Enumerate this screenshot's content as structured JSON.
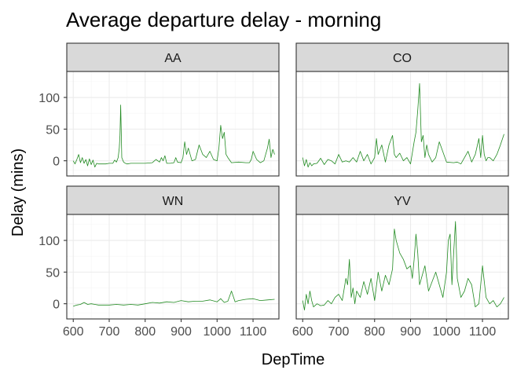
{
  "chart_data": {
    "type": "line",
    "title": "Average departure delay - morning",
    "xlabel": "DepTime",
    "ylabel": "Delay (mins)",
    "x_ticks": [
      600,
      700,
      800,
      900,
      1000,
      1100
    ],
    "y_ticks": [
      0,
      50,
      100
    ],
    "x_tick_labels": [
      "600",
      "700",
      "800",
      "900",
      "1000",
      "1100"
    ],
    "y_tick_labels": [
      "0",
      "50",
      "100"
    ],
    "xlim": [
      582,
      1172
    ],
    "ylim": [
      -24,
      141
    ],
    "grid": true,
    "line_color": "#228b22",
    "facets": [
      {
        "name": "AA",
        "x": [
          600,
          605,
          610,
          615,
          620,
          625,
          630,
          635,
          640,
          645,
          650,
          655,
          660,
          665,
          670,
          680,
          690,
          700,
          710,
          715,
          720,
          725,
          728,
          730,
          732,
          735,
          740,
          745,
          750,
          760,
          780,
          800,
          820,
          830,
          840,
          845,
          850,
          855,
          860,
          870,
          880,
          885,
          890,
          900,
          905,
          910,
          915,
          920,
          930,
          940,
          950,
          960,
          970,
          980,
          990,
          1000,
          1005,
          1010,
          1015,
          1020,
          1025,
          1030,
          1040,
          1060,
          1080,
          1090,
          1095,
          1100,
          1110,
          1120,
          1130,
          1140,
          1145,
          1150,
          1155,
          1160
        ],
        "values": [
          0,
          -5,
          2,
          10,
          -3,
          5,
          -4,
          2,
          -8,
          3,
          -6,
          1,
          -10,
          -4,
          -5,
          -5,
          -5,
          -4,
          -4,
          1,
          -2,
          5,
          20,
          40,
          88,
          5,
          -2,
          -4,
          -5,
          -4,
          -4,
          -4,
          -3,
          2,
          -2,
          5,
          0,
          8,
          -4,
          -4,
          -3,
          5,
          -2,
          -3,
          5,
          30,
          10,
          20,
          0,
          2,
          25,
          10,
          5,
          15,
          2,
          0,
          20,
          56,
          35,
          45,
          10,
          5,
          -3,
          -2,
          -3,
          -3,
          2,
          15,
          2,
          -3,
          0,
          20,
          34,
          5,
          18,
          10
        ]
      },
      {
        "name": "CO",
        "x": [
          600,
          605,
          610,
          615,
          620,
          625,
          630,
          640,
          650,
          660,
          670,
          680,
          690,
          700,
          710,
          720,
          730,
          740,
          750,
          760,
          770,
          780,
          790,
          800,
          805,
          810,
          820,
          830,
          840,
          850,
          855,
          860,
          870,
          880,
          890,
          900,
          910,
          915,
          920,
          925,
          930,
          935,
          940,
          945,
          950,
          960,
          970,
          980,
          1000,
          1020,
          1030,
          1040,
          1050,
          1060,
          1070,
          1080,
          1090,
          1095,
          1100,
          1105,
          1110,
          1115,
          1120,
          1130,
          1140,
          1150,
          1160
        ],
        "values": [
          5,
          -8,
          2,
          -10,
          -3,
          -8,
          -5,
          -4,
          4,
          -6,
          2,
          0,
          -5,
          10,
          -2,
          0,
          -2,
          5,
          -2,
          15,
          0,
          10,
          -5,
          5,
          35,
          10,
          25,
          -2,
          25,
          40,
          10,
          5,
          12,
          0,
          5,
          -5,
          30,
          45,
          80,
          122,
          30,
          40,
          5,
          25,
          10,
          -2,
          5,
          30,
          -2,
          -3,
          -2,
          -5,
          5,
          15,
          -2,
          10,
          35,
          5,
          40,
          10,
          0,
          5,
          5,
          0,
          10,
          25,
          42
        ]
      },
      {
        "name": "WN",
        "x": [
          600,
          610,
          620,
          630,
          640,
          650,
          660,
          670,
          680,
          700,
          720,
          740,
          760,
          780,
          800,
          820,
          840,
          860,
          880,
          900,
          920,
          940,
          960,
          980,
          1000,
          1010,
          1020,
          1030,
          1040,
          1050,
          1060,
          1080,
          1100,
          1120,
          1140,
          1160
        ],
        "values": [
          -4,
          -2,
          -1,
          2,
          -1,
          0,
          -1,
          -2,
          -2,
          -2,
          -1,
          -2,
          -1,
          -2,
          0,
          2,
          1,
          3,
          2,
          5,
          3,
          4,
          4,
          6,
          3,
          8,
          2,
          4,
          20,
          3,
          5,
          7,
          8,
          5,
          6,
          7
        ]
      },
      {
        "name": "YV",
        "x": [
          600,
          605,
          610,
          615,
          620,
          625,
          630,
          640,
          650,
          660,
          670,
          680,
          690,
          700,
          710,
          720,
          725,
          730,
          735,
          740,
          745,
          750,
          760,
          770,
          780,
          790,
          800,
          810,
          820,
          830,
          840,
          850,
          855,
          860,
          870,
          880,
          890,
          900,
          905,
          910,
          915,
          920,
          925,
          930,
          940,
          950,
          960,
          970,
          980,
          990,
          1000,
          1005,
          1010,
          1015,
          1020,
          1025,
          1030,
          1040,
          1050,
          1060,
          1070,
          1080,
          1090,
          1100,
          1110,
          1120,
          1130,
          1140,
          1150,
          1160
        ],
        "values": [
          5,
          -10,
          15,
          0,
          20,
          5,
          -5,
          0,
          -3,
          -2,
          5,
          0,
          10,
          15,
          5,
          40,
          30,
          70,
          10,
          25,
          0,
          20,
          10,
          35,
          15,
          40,
          5,
          50,
          20,
          45,
          30,
          55,
          118,
          100,
          80,
          70,
          55,
          60,
          40,
          70,
          110,
          80,
          30,
          40,
          60,
          20,
          35,
          50,
          30,
          10,
          50,
          100,
          110,
          30,
          80,
          130,
          40,
          10,
          20,
          40,
          30,
          -5,
          0,
          60,
          10,
          0,
          5,
          -5,
          0,
          10
        ]
      }
    ]
  }
}
